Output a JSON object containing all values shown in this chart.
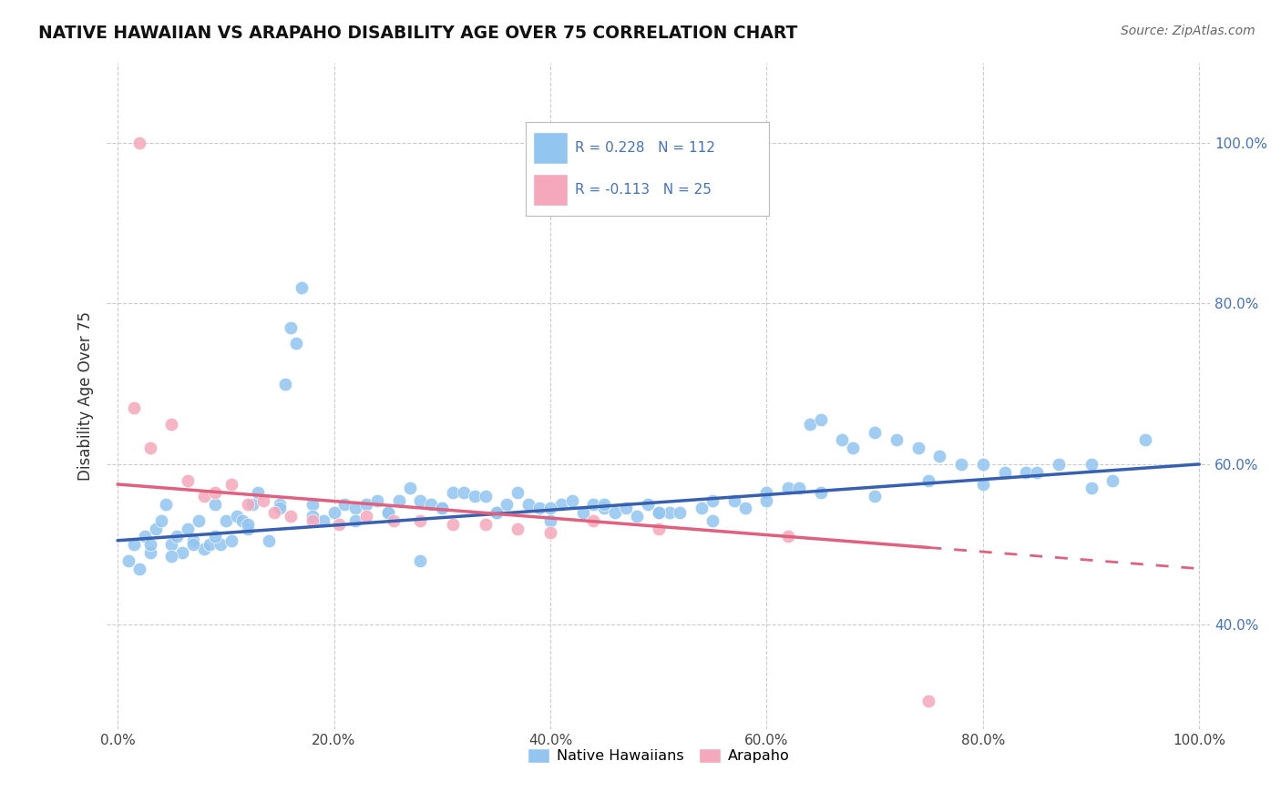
{
  "title": "NATIVE HAWAIIAN VS ARAPAHO DISABILITY AGE OVER 75 CORRELATION CHART",
  "source_text": "Source: ZipAtlas.com",
  "ylabel": "Disability Age Over 75",
  "x_tick_labels": [
    "0.0%",
    "20.0%",
    "40.0%",
    "60.0%",
    "80.0%",
    "100.0%"
  ],
  "x_tick_vals": [
    0.0,
    20.0,
    40.0,
    60.0,
    80.0,
    100.0
  ],
  "y_tick_labels": [
    "40.0%",
    "60.0%",
    "80.0%",
    "100.0%"
  ],
  "y_tick_vals": [
    40.0,
    60.0,
    80.0,
    100.0
  ],
  "xlim": [
    -1,
    101
  ],
  "ylim": [
    27,
    110
  ],
  "legend_R1": "0.228",
  "legend_N1": "112",
  "legend_R2": "-0.113",
  "legend_N2": "25",
  "legend_label1": "Native Hawaiians",
  "legend_label2": "Arapaho",
  "color_blue": "#92C5F0",
  "color_pink": "#F5A8BB",
  "color_blue_line": "#3860B0",
  "color_pink_line": "#E06080",
  "color_legend_text": "#4472C4",
  "background_color": "#FFFFFF",
  "grid_color": "#CCCCCC",
  "blue_x": [
    1.0,
    1.5,
    2.0,
    2.5,
    3.0,
    3.5,
    4.0,
    4.5,
    5.0,
    5.5,
    6.0,
    6.5,
    7.0,
    7.5,
    8.0,
    8.5,
    9.0,
    9.5,
    10.0,
    10.5,
    11.0,
    11.5,
    12.0,
    12.5,
    13.0,
    14.0,
    15.0,
    16.0,
    17.0,
    18.0,
    19.0,
    20.0,
    21.0,
    22.0,
    23.0,
    24.0,
    25.0,
    26.0,
    27.0,
    28.0,
    29.0,
    30.0,
    31.0,
    32.0,
    33.0,
    34.0,
    35.0,
    36.0,
    37.0,
    38.0,
    39.0,
    40.0,
    41.0,
    42.0,
    43.0,
    44.0,
    45.0,
    46.0,
    47.0,
    48.0,
    49.0,
    50.0,
    51.0,
    52.0,
    54.0,
    55.0,
    57.0,
    58.0,
    60.0,
    62.0,
    63.0,
    64.0,
    65.0,
    67.0,
    68.0,
    70.0,
    72.0,
    74.0,
    76.0,
    78.0,
    80.0,
    82.0,
    84.0,
    87.0,
    90.0,
    92.0,
    95.0,
    3.0,
    5.0,
    7.0,
    9.0,
    12.0,
    15.0,
    18.0,
    22.0,
    25.0,
    30.0,
    35.0,
    40.0,
    45.0,
    50.0,
    55.0,
    60.0,
    65.0,
    70.0,
    75.0,
    80.0,
    85.0,
    90.0,
    15.5,
    16.5,
    28.0
  ],
  "blue_y": [
    48.0,
    50.0,
    47.0,
    51.0,
    49.0,
    52.0,
    53.0,
    55.0,
    50.0,
    51.0,
    49.0,
    52.0,
    50.5,
    53.0,
    49.5,
    50.0,
    55.0,
    50.0,
    53.0,
    50.5,
    53.5,
    53.0,
    52.0,
    55.0,
    56.5,
    50.5,
    55.0,
    77.0,
    82.0,
    55.0,
    53.0,
    54.0,
    55.0,
    54.5,
    55.0,
    55.5,
    54.0,
    55.5,
    57.0,
    55.5,
    55.0,
    54.5,
    56.5,
    56.5,
    56.0,
    56.0,
    54.0,
    55.0,
    56.5,
    55.0,
    54.5,
    53.0,
    55.0,
    55.5,
    54.0,
    55.0,
    54.5,
    54.0,
    54.5,
    53.5,
    55.0,
    54.0,
    54.0,
    54.0,
    54.5,
    53.0,
    55.5,
    54.5,
    56.5,
    57.0,
    57.0,
    65.0,
    65.5,
    63.0,
    62.0,
    64.0,
    63.0,
    62.0,
    61.0,
    60.0,
    60.0,
    59.0,
    59.0,
    60.0,
    60.0,
    58.0,
    63.0,
    50.0,
    48.5,
    50.0,
    51.0,
    52.5,
    54.5,
    53.5,
    53.0,
    54.0,
    54.5,
    54.0,
    54.5,
    55.0,
    54.0,
    55.5,
    55.5,
    56.5,
    56.0,
    58.0,
    57.5,
    59.0,
    57.0,
    70.0,
    75.0,
    48.0
  ],
  "pink_x": [
    1.5,
    3.0,
    5.0,
    6.5,
    8.0,
    9.0,
    10.5,
    12.0,
    13.5,
    14.5,
    16.0,
    18.0,
    20.5,
    23.0,
    25.5,
    28.0,
    31.0,
    34.0,
    37.0,
    40.0,
    44.0,
    50.0,
    62.0,
    75.0,
    2.0
  ],
  "pink_y": [
    67.0,
    62.0,
    65.0,
    58.0,
    56.0,
    56.5,
    57.5,
    55.0,
    55.5,
    54.0,
    53.5,
    53.0,
    52.5,
    53.5,
    53.0,
    53.0,
    52.5,
    52.5,
    52.0,
    51.5,
    53.0,
    52.0,
    51.0,
    30.5,
    100.0
  ],
  "blue_trend_x0": 0,
  "blue_trend_x1": 100,
  "blue_trend_y0": 50.5,
  "blue_trend_y1": 60.0,
  "pink_trend_x0": 0,
  "pink_trend_x1": 100,
  "pink_trend_y0": 57.5,
  "pink_trend_y1": 47.0,
  "pink_solid_end": 75
}
